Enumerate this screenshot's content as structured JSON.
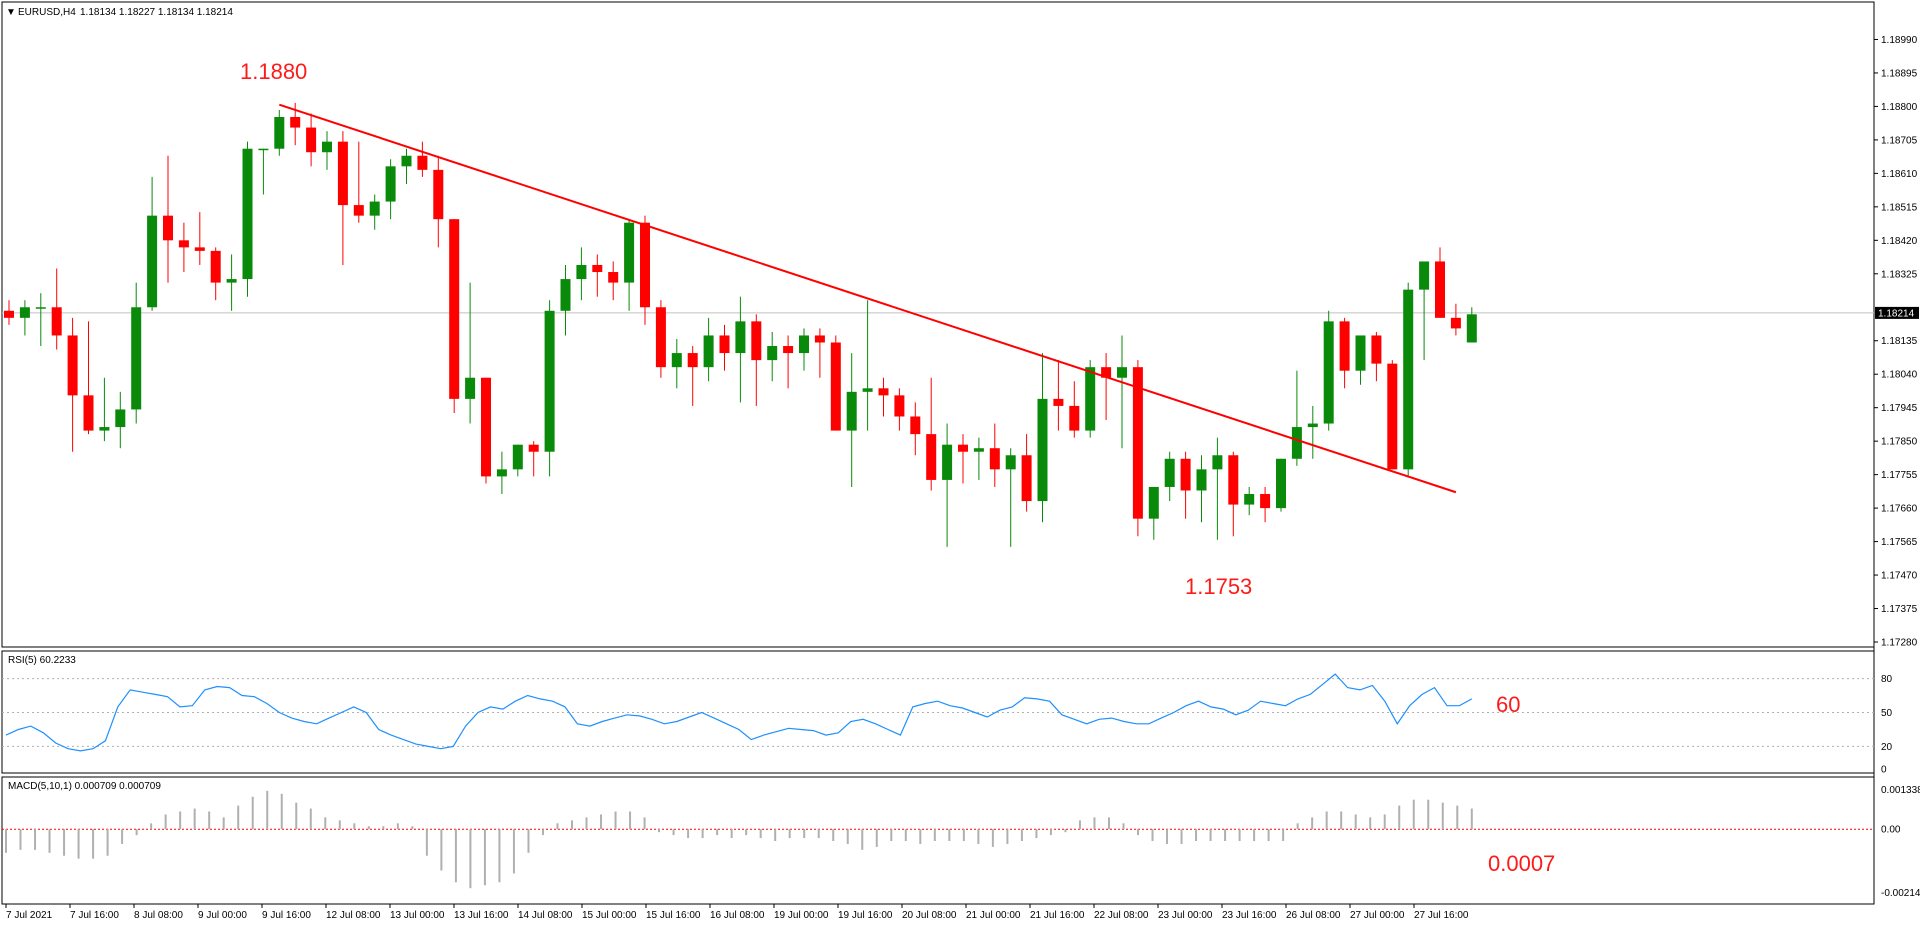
{
  "header": {
    "symbol": "EURUSD,H4",
    "ohlc": "1.18134 1.18227 1.18134 1.18214"
  },
  "annotations": {
    "high": "1.1880",
    "low": "1.1753",
    "rsi_value": "60",
    "macd_value": "0.0007"
  },
  "colors": {
    "bull": "#0a8a0a",
    "bear": "#ff0000",
    "trendline": "#ff0000",
    "rsi_line": "#1e90ff",
    "macd_hist": "#b0b0b0",
    "macd_signal": "#ff0000"
  },
  "chart_data": [
    {
      "type": "candlestick",
      "symbol": "EURUSD",
      "timeframe": "H4",
      "ylim": [
        1.1728,
        1.19085
      ],
      "y_ticks": [
        "1.18990",
        "1.18895",
        "1.18800",
        "1.18705",
        "1.18610",
        "1.18515",
        "1.18420",
        "1.18325",
        "1.18214",
        "1.18135",
        "1.18040",
        "1.17945",
        "1.17850",
        "1.17755",
        "1.17660",
        "1.17565",
        "1.17470",
        "1.17375",
        "1.17280"
      ],
      "current_price": "1.18214",
      "x_labels": [
        "7 Jul 2021",
        "7 Jul 16:00",
        "8 Jul 08:00",
        "9 Jul 00:00",
        "9 Jul 16:00",
        "12 Jul 08:00",
        "13 Jul 00:00",
        "13 Jul 16:00",
        "14 Jul 08:00",
        "15 Jul 00:00",
        "15 Jul 16:00",
        "16 Jul 08:00",
        "19 Jul 00:00",
        "19 Jul 16:00",
        "20 Jul 08:00",
        "21 Jul 00:00",
        "21 Jul 16:00",
        "22 Jul 08:00",
        "23 Jul 00:00",
        "23 Jul 16:00",
        "26 Jul 08:00",
        "27 Jul 00:00",
        "27 Jul 16:00"
      ],
      "candles": [
        [
          1.1822,
          1.1825,
          1.1818,
          1.182
        ],
        [
          1.182,
          1.1825,
          1.1815,
          1.1823
        ],
        [
          1.1823,
          1.1827,
          1.1812,
          1.1823
        ],
        [
          1.1823,
          1.1834,
          1.1811,
          1.1815
        ],
        [
          1.1815,
          1.182,
          1.1782,
          1.1798
        ],
        [
          1.1798,
          1.1819,
          1.1787,
          1.1788
        ],
        [
          1.1788,
          1.1803,
          1.1785,
          1.1789
        ],
        [
          1.1789,
          1.1799,
          1.1783,
          1.1794
        ],
        [
          1.1794,
          1.183,
          1.179,
          1.1823
        ],
        [
          1.1823,
          1.186,
          1.1822,
          1.1849
        ],
        [
          1.1849,
          1.1866,
          1.183,
          1.1842
        ],
        [
          1.1842,
          1.1847,
          1.1833,
          1.184
        ],
        [
          1.184,
          1.185,
          1.1835,
          1.1839
        ],
        [
          1.1839,
          1.184,
          1.1825,
          1.183
        ],
        [
          1.183,
          1.1838,
          1.1822,
          1.1831
        ],
        [
          1.1831,
          1.187,
          1.1826,
          1.1868
        ],
        [
          1.1868,
          1.1868,
          1.1855,
          1.1868
        ],
        [
          1.1868,
          1.1879,
          1.1866,
          1.1877
        ],
        [
          1.1877,
          1.1881,
          1.1869,
          1.1874
        ],
        [
          1.1874,
          1.1878,
          1.1863,
          1.1867
        ],
        [
          1.1867,
          1.1873,
          1.1862,
          1.187
        ],
        [
          1.187,
          1.1873,
          1.1835,
          1.1852
        ],
        [
          1.1852,
          1.187,
          1.1847,
          1.1849
        ],
        [
          1.1849,
          1.1855,
          1.1845,
          1.1853
        ],
        [
          1.1853,
          1.1865,
          1.1848,
          1.1863
        ],
        [
          1.1863,
          1.1868,
          1.1858,
          1.1866
        ],
        [
          1.1866,
          1.187,
          1.186,
          1.1862
        ],
        [
          1.1862,
          1.1866,
          1.184,
          1.1848
        ],
        [
          1.1848,
          1.1848,
          1.1793,
          1.1797
        ],
        [
          1.1797,
          1.183,
          1.179,
          1.1803
        ],
        [
          1.1803,
          1.1803,
          1.1773,
          1.1775
        ],
        [
          1.1775,
          1.1782,
          1.177,
          1.1777
        ],
        [
          1.1777,
          1.1784,
          1.1775,
          1.1784
        ],
        [
          1.1784,
          1.1785,
          1.1775,
          1.1782
        ],
        [
          1.1782,
          1.1825,
          1.1775,
          1.1822
        ],
        [
          1.1822,
          1.1835,
          1.1815,
          1.1831
        ],
        [
          1.1831,
          1.184,
          1.1825,
          1.1835
        ],
        [
          1.1835,
          1.1838,
          1.1826,
          1.1833
        ],
        [
          1.1833,
          1.1836,
          1.1825,
          1.183
        ],
        [
          1.183,
          1.1848,
          1.1822,
          1.1847
        ],
        [
          1.1847,
          1.1849,
          1.1818,
          1.1823
        ],
        [
          1.1823,
          1.1825,
          1.1803,
          1.1806
        ],
        [
          1.1806,
          1.1814,
          1.18,
          1.181
        ],
        [
          1.181,
          1.1812,
          1.1795,
          1.1806
        ],
        [
          1.1806,
          1.182,
          1.1802,
          1.1815
        ],
        [
          1.1815,
          1.1818,
          1.1805,
          1.181
        ],
        [
          1.181,
          1.1826,
          1.1796,
          1.1819
        ],
        [
          1.1819,
          1.1821,
          1.1795,
          1.1808
        ],
        [
          1.1808,
          1.1816,
          1.1802,
          1.1812
        ],
        [
          1.1812,
          1.1815,
          1.18,
          1.181
        ],
        [
          1.181,
          1.1817,
          1.1805,
          1.1815
        ],
        [
          1.1815,
          1.1817,
          1.1803,
          1.1813
        ],
        [
          1.1813,
          1.1815,
          1.1788,
          1.1788
        ],
        [
          1.1788,
          1.181,
          1.1772,
          1.1799
        ],
        [
          1.1799,
          1.1825,
          1.1788,
          1.18
        ],
        [
          1.18,
          1.1803,
          1.1792,
          1.1798
        ],
        [
          1.1798,
          1.18,
          1.1788,
          1.1792
        ],
        [
          1.1792,
          1.1796,
          1.1781,
          1.1787
        ],
        [
          1.1787,
          1.1803,
          1.1771,
          1.1774
        ],
        [
          1.1774,
          1.179,
          1.1755,
          1.1784
        ],
        [
          1.1784,
          1.1787,
          1.1773,
          1.1782
        ],
        [
          1.1782,
          1.1786,
          1.1774,
          1.1783
        ],
        [
          1.1783,
          1.179,
          1.1772,
          1.1777
        ],
        [
          1.1777,
          1.1783,
          1.1755,
          1.1781
        ],
        [
          1.1781,
          1.1787,
          1.1765,
          1.1768
        ],
        [
          1.1768,
          1.181,
          1.1762,
          1.1797
        ],
        [
          1.1797,
          1.1808,
          1.1788,
          1.1795
        ],
        [
          1.1795,
          1.1802,
          1.1786,
          1.1788
        ],
        [
          1.1788,
          1.1808,
          1.1786,
          1.1806
        ],
        [
          1.1806,
          1.181,
          1.1791,
          1.1803
        ],
        [
          1.1803,
          1.1815,
          1.1783,
          1.1806
        ],
        [
          1.1806,
          1.1808,
          1.1758,
          1.1763
        ],
        [
          1.1763,
          1.1772,
          1.1757,
          1.1772
        ],
        [
          1.1772,
          1.1782,
          1.1768,
          1.178
        ],
        [
          1.178,
          1.1782,
          1.1763,
          1.1771
        ],
        [
          1.1771,
          1.1781,
          1.1762,
          1.1777
        ],
        [
          1.1777,
          1.1786,
          1.1757,
          1.1781
        ],
        [
          1.1781,
          1.1782,
          1.1758,
          1.1767
        ],
        [
          1.1767,
          1.1772,
          1.1764,
          1.177
        ],
        [
          1.177,
          1.1772,
          1.1762,
          1.1766
        ],
        [
          1.1766,
          1.178,
          1.1765,
          1.178
        ],
        [
          1.178,
          1.1805,
          1.1778,
          1.1789
        ],
        [
          1.1789,
          1.1795,
          1.178,
          1.179
        ],
        [
          1.179,
          1.1822,
          1.1788,
          1.1819
        ],
        [
          1.1819,
          1.182,
          1.18,
          1.1805
        ],
        [
          1.1805,
          1.1815,
          1.1801,
          1.1815
        ],
        [
          1.1815,
          1.1816,
          1.1802,
          1.1807
        ],
        [
          1.1807,
          1.1808,
          1.1777,
          1.1777
        ],
        [
          1.1777,
          1.183,
          1.1775,
          1.1828
        ],
        [
          1.1828,
          1.1835,
          1.1808,
          1.1836
        ],
        [
          1.1836,
          1.184,
          1.182,
          1.182
        ],
        [
          1.182,
          1.1824,
          1.1815,
          1.1817
        ],
        [
          1.1813,
          1.1823,
          1.1813,
          1.1821
        ]
      ],
      "trendline": {
        "from": {
          "bar": 17,
          "price": 1.18805
        },
        "to": {
          "bar": 91,
          "price": 1.17705
        }
      }
    },
    {
      "type": "line",
      "title": "RSI(5) 60.2233",
      "ylim": [
        0,
        100
      ],
      "levels": [
        80,
        50,
        20
      ],
      "y_ticks": [
        "80",
        "50",
        "20",
        "0"
      ],
      "values": [
        30,
        35,
        38,
        32,
        23,
        18,
        16,
        18,
        25,
        55,
        70,
        68,
        66,
        64,
        55,
        56,
        70,
        73,
        72,
        65,
        64,
        58,
        50,
        45,
        42,
        40,
        45,
        50,
        55,
        50,
        35,
        30,
        26,
        22,
        20,
        18,
        20,
        38,
        50,
        55,
        53,
        60,
        65,
        62,
        60,
        55,
        40,
        38,
        42,
        45,
        48,
        47,
        44,
        40,
        42,
        46,
        50,
        45,
        40,
        35,
        26,
        30,
        33,
        36,
        35,
        34,
        30,
        32,
        42,
        44,
        40,
        35,
        30,
        55,
        58,
        60,
        56,
        54,
        50,
        46,
        52,
        55,
        63,
        62,
        60,
        48,
        44,
        40,
        44,
        45,
        42,
        40,
        40,
        45,
        50,
        56,
        60,
        55,
        53,
        48,
        52,
        60,
        58,
        56,
        62,
        66,
        75,
        84,
        72,
        70,
        74,
        60,
        40,
        56,
        66,
        72,
        56,
        56,
        62
      ]
    },
    {
      "type": "bar",
      "title": "MACD(5,10,1) 0.000709 0.000709",
      "ylim": [
        -0.0024,
        0.0016
      ],
      "y_ticks": [
        "0.001338",
        "0.00",
        "-0.002146"
      ],
      "values": [
        -0.0008,
        -0.0007,
        -0.0007,
        -0.0008,
        -0.0009,
        -0.001,
        -0.001,
        -0.0009,
        -0.0005,
        -0.0002,
        0.0002,
        0.0005,
        0.0006,
        0.0007,
        0.0006,
        0.0004,
        0.0008,
        0.0011,
        0.0013,
        0.0012,
        0.0009,
        0.0007,
        0.0004,
        0.0003,
        0.0002,
        0.0001,
        0.0001,
        0.0002,
        0.0001,
        -0.0009,
        -0.0014,
        -0.0018,
        -0.002,
        -0.0019,
        -0.0018,
        -0.0015,
        -0.0008,
        -0.0002,
        0.0002,
        0.0003,
        0.0004,
        0.0005,
        0.0006,
        0.0006,
        0.0004,
        -0.0001,
        -0.0002,
        -0.0003,
        -0.0003,
        -0.0002,
        -0.0003,
        -0.0002,
        -0.0003,
        -0.0004,
        -0.0003,
        -0.0003,
        -0.0003,
        -0.0004,
        -0.0005,
        -0.0007,
        -0.0006,
        -0.0004,
        -0.0004,
        -0.0005,
        -0.0004,
        -0.0004,
        -0.0004,
        -0.0005,
        -0.0006,
        -0.0005,
        -0.0004,
        -0.0003,
        -0.0002,
        -0.0001,
        0.0003,
        0.0004,
        0.0004,
        0.0002,
        -0.0002,
        -0.0004,
        -0.0005,
        -0.0005,
        -0.0004,
        -0.0004,
        -0.0004,
        -0.0004,
        -0.0004,
        -0.0004,
        -0.0004,
        0.0002,
        0.0004,
        0.0006,
        0.0006,
        0.0005,
        0.0004,
        0.0005,
        0.0008,
        0.001,
        0.001,
        0.0009,
        0.0008,
        0.0007
      ]
    }
  ]
}
